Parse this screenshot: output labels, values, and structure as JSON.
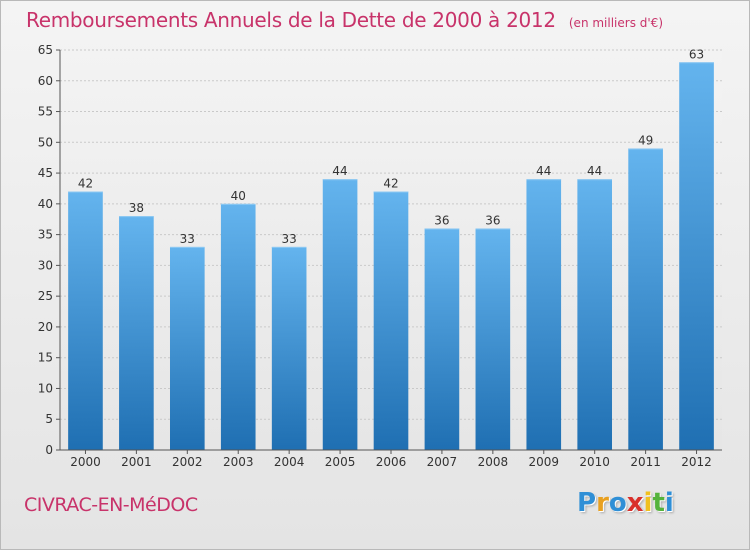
{
  "title": "Remboursements Annuels de la Dette de 2000 à 2012",
  "unit": "(en milliers d'€)",
  "place": "CIVRAC-EN-MéDOC",
  "logo": {
    "letters": [
      "P",
      "r",
      "o",
      "x",
      "i",
      "t",
      "i"
    ],
    "colors": [
      "#2f8fd6",
      "#e8a020",
      "#2f8fd6",
      "#d9302b",
      "#f0c020",
      "#55b33c",
      "#2f8fd6"
    ]
  },
  "colors": {
    "bar": "#3f97dd",
    "bar_light": "#64b4ee",
    "bar_dark": "#1f6fb2",
    "title": "#c8336a"
  },
  "chart_data": {
    "type": "bar",
    "categories": [
      "2000",
      "2001",
      "2002",
      "2003",
      "2004",
      "2005",
      "2006",
      "2007",
      "2008",
      "2009",
      "2010",
      "2011",
      "2012"
    ],
    "values": [
      42,
      38,
      33,
      40,
      33,
      44,
      42,
      36,
      36,
      44,
      44,
      49,
      63
    ],
    "data_labels": [
      "42",
      "38",
      "33",
      "40",
      "33",
      "44",
      "42",
      "36",
      "36",
      "44",
      "44",
      "49",
      "63"
    ],
    "ylim": [
      0,
      65
    ],
    "yticks": [
      0,
      5,
      10,
      15,
      20,
      25,
      30,
      35,
      40,
      45,
      50,
      55,
      60,
      65
    ],
    "ytick_labels": [
      "0",
      "5",
      "10",
      "15",
      "20",
      "25",
      "30",
      "35",
      "40",
      "45",
      "50",
      "55",
      "60",
      "65"
    ],
    "grid": true
  }
}
